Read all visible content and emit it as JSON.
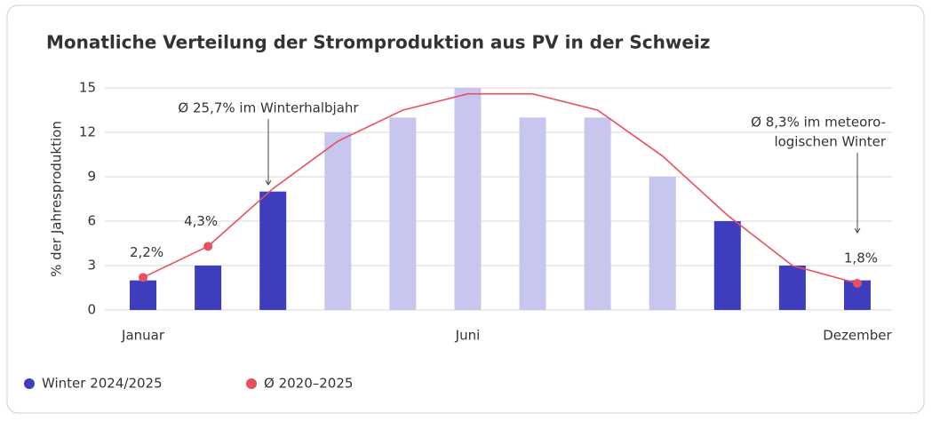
{
  "chart_data": {
    "type": "bar",
    "title": "Monatliche Verteilung der Stromproduktion aus PV in der Schweiz",
    "ylabel": "% der Jahresproduktion",
    "categories": [
      "Januar",
      null,
      null,
      null,
      null,
      "Juni",
      null,
      null,
      null,
      null,
      null,
      "Dezember"
    ],
    "series": [
      {
        "name": "Winter 2024/2025",
        "type": "bar",
        "color": "#3d3dbd",
        "colors": [
          "#3d3dbd",
          "#3d3dbd",
          "#3d3dbd",
          "#c6c6ef",
          "#c6c6ef",
          "#c6c6ef",
          "#c6c6ef",
          "#c6c6ef",
          "#c6c6ef",
          "#3d3dbd",
          "#3d3dbd",
          "#3d3dbd"
        ],
        "values": [
          2,
          3,
          8,
          12,
          13,
          15,
          13,
          13,
          9,
          6,
          3,
          2
        ]
      },
      {
        "name": "Ø 2020–2025",
        "type": "line",
        "color": "#e8505b",
        "values": [
          2.2,
          4.3,
          8.2,
          11.4,
          13.5,
          14.6,
          14.6,
          13.5,
          10.4,
          6.4,
          3.0,
          1.8
        ],
        "value_labels": [
          "2,2%",
          "4,3%",
          null,
          null,
          null,
          null,
          null,
          null,
          null,
          null,
          null,
          "1,8%"
        ]
      }
    ],
    "annotations": [
      {
        "lines": [
          "Ø 25,7% im Winterhalbjahr"
        ]
      },
      {
        "lines": [
          "Ø 8,3% im meteoro-",
          "logischen Winter"
        ]
      }
    ],
    "ylim": [
      0,
      15
    ],
    "yticks": [
      0,
      3,
      6,
      9,
      12,
      15
    ],
    "grid": true
  }
}
